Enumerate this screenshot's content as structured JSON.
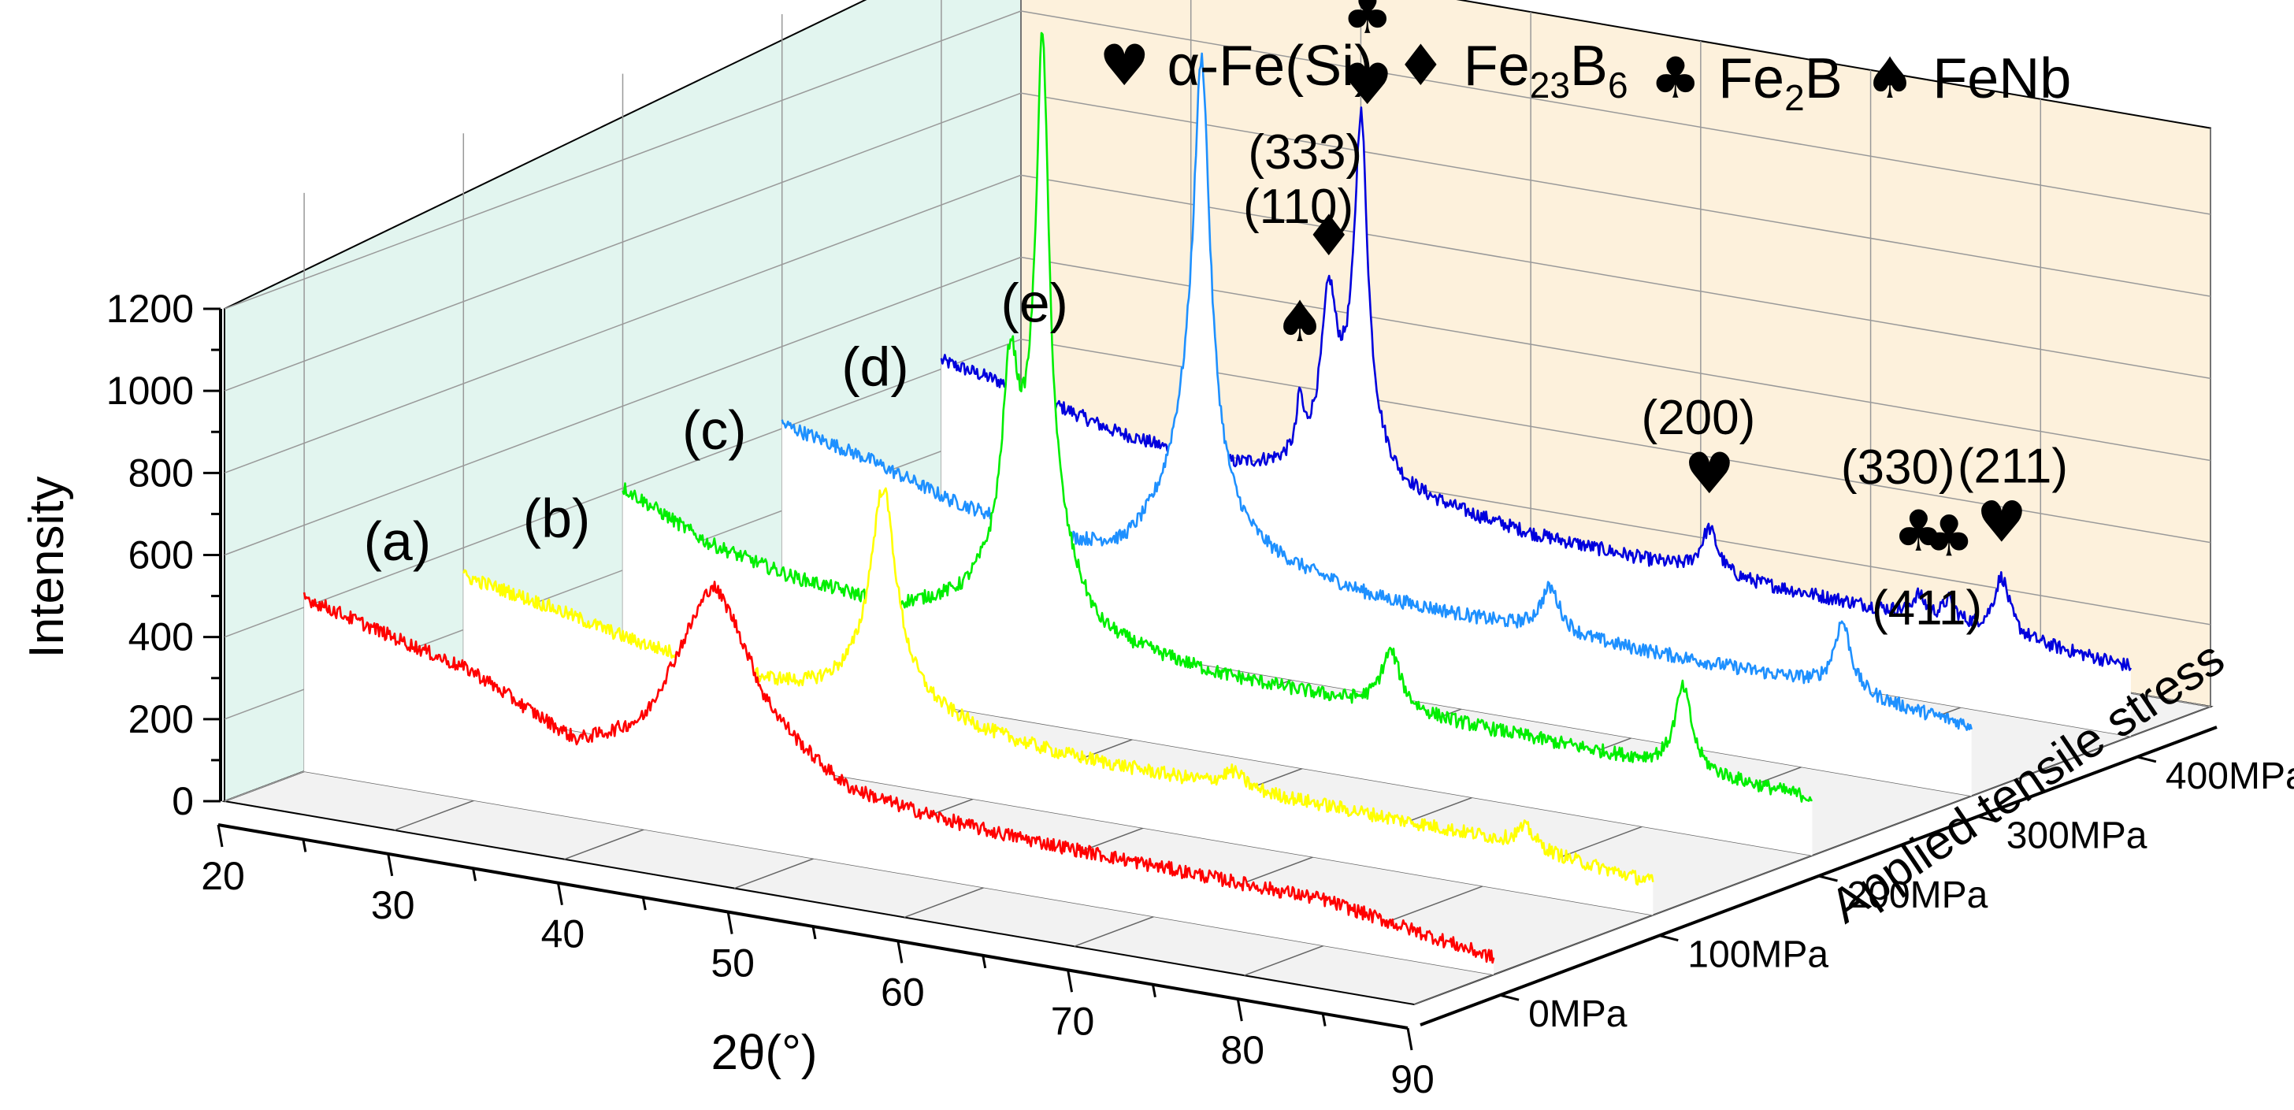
{
  "chart_data": {
    "type": "line",
    "projection": "3d-waterfall",
    "xlabel": "2θ(°)",
    "ylabel": "Intensity",
    "zlabel": "Applied tensile stress",
    "x_ticks": [
      "20",
      "30",
      "40",
      "50",
      "60",
      "70",
      "80",
      "90"
    ],
    "xlim": [
      20,
      90
    ],
    "y_ticks": [
      "0",
      "200",
      "400",
      "600",
      "800",
      "1000",
      "1200"
    ],
    "ylim": [
      0,
      1200
    ],
    "z_ticks": [
      "0MPa",
      "100MPa",
      "200MPa",
      "300MPa",
      "400MPa"
    ],
    "legend": [
      {
        "symbol": "♥",
        "name": "α-Fe(Si)"
      },
      {
        "symbol": "♦",
        "name": "Fe",
        "sub": "23",
        "name2": "B",
        "sub2": "6"
      },
      {
        "symbol": "♣",
        "name": "Fe",
        "sub": "2",
        "name2": "B",
        "sub2": ""
      },
      {
        "symbol": "♠",
        "name": "FeNb",
        "sub": "",
        "name2": "",
        "sub2": ""
      }
    ],
    "series": [
      {
        "name": "(a)",
        "stress": "0MPa",
        "color": "#ff0000",
        "baseline": [
          [
            20,
            420
          ],
          [
            30,
            300
          ],
          [
            36,
            160
          ],
          [
            40,
            190
          ],
          [
            44,
            400
          ],
          [
            47,
            230
          ],
          [
            52,
            150
          ],
          [
            60,
            130
          ],
          [
            70,
            120
          ],
          [
            80,
            110
          ],
          [
            90,
            40
          ]
        ],
        "peaks": [
          [
            44.5,
            230,
            3.5
          ]
        ]
      },
      {
        "name": "(b)",
        "stress": "100MPa",
        "color": "#ffff00",
        "baseline": [
          [
            20,
            330
          ],
          [
            25,
            290
          ],
          [
            30,
            240
          ],
          [
            36,
            200
          ],
          [
            40,
            180
          ],
          [
            45,
            170
          ],
          [
            55,
            140
          ],
          [
            70,
            130
          ],
          [
            80,
            120
          ],
          [
            90,
            80
          ]
        ],
        "peaks": [
          [
            44.7,
            470,
            0.9
          ],
          [
            44.5,
            80,
            3
          ],
          [
            65.3,
            40,
            0.8
          ],
          [
            82.5,
            50,
            0.7
          ]
        ]
      },
      {
        "name": "(c)",
        "stress": "200MPa",
        "color": "#00ee00",
        "baseline": [
          [
            20,
            400
          ],
          [
            25,
            300
          ],
          [
            30,
            250
          ],
          [
            36,
            220
          ],
          [
            40,
            260
          ],
          [
            44,
            380
          ],
          [
            48,
            220
          ],
          [
            55,
            190
          ],
          [
            65,
            180
          ],
          [
            80,
            160
          ],
          [
            90,
            140
          ]
        ],
        "peaks": [
          [
            42.8,
            420,
            0.55
          ],
          [
            44.7,
            1100,
            0.45
          ],
          [
            44.5,
            200,
            1.8
          ],
          [
            65.2,
            140,
            0.7
          ],
          [
            82.4,
            200,
            0.6
          ]
        ]
      },
      {
        "name": "(d)",
        "stress": "300MPa",
        "color": "#1e90ff",
        "baseline": [
          [
            20,
            410
          ],
          [
            25,
            360
          ],
          [
            30,
            290
          ],
          [
            36,
            240
          ],
          [
            40,
            230
          ],
          [
            43,
            300
          ],
          [
            48,
            270
          ],
          [
            55,
            230
          ],
          [
            65,
            220
          ],
          [
            80,
            210
          ],
          [
            90,
            170
          ]
        ],
        "peaks": [
          [
            44.7,
            880,
            0.55
          ],
          [
            44.4,
            320,
            1.6
          ],
          [
            65.2,
            110,
            0.7
          ],
          [
            82.4,
            170,
            0.6
          ]
        ]
      },
      {
        "name": "(e)",
        "stress": "400MPa",
        "color": "#0000dd",
        "baseline": [
          [
            20,
            420
          ],
          [
            25,
            380
          ],
          [
            30,
            320
          ],
          [
            36,
            280
          ],
          [
            40,
            300
          ],
          [
            43,
            360
          ],
          [
            47,
            280
          ],
          [
            55,
            240
          ],
          [
            65,
            220
          ],
          [
            80,
            200
          ],
          [
            90,
            170
          ]
        ],
        "peaks": [
          [
            41.1,
            120,
            0.2
          ],
          [
            42.8,
            320,
            0.5
          ],
          [
            44.7,
            720,
            0.45
          ],
          [
            44.4,
            140,
            1.5
          ],
          [
            65.2,
            110,
            0.6
          ],
          [
            77.5,
            50,
            0.45
          ],
          [
            79.3,
            50,
            0.45
          ],
          [
            82.4,
            140,
            0.55
          ]
        ]
      }
    ],
    "annotations": [
      {
        "series": 4,
        "x": 41.1,
        "symbol": "♠",
        "label": "(110)"
      },
      {
        "series": 4,
        "x": 42.8,
        "symbol": "♦",
        "label": "(333)"
      },
      {
        "series": 4,
        "x": 44.7,
        "symbol": "♥",
        "label": "(110)",
        "extra_symbol": "♣"
      },
      {
        "series": 4,
        "x": 65.2,
        "symbol": "♥",
        "label": "(200)"
      },
      {
        "series": 4,
        "x": 77.5,
        "symbol": "♣",
        "label": "(330)"
      },
      {
        "series": 4,
        "x": 79.3,
        "symbol": "♣",
        "label": "(411)"
      },
      {
        "series": 4,
        "x": 82.4,
        "symbol": "♥",
        "label": "(211)"
      }
    ]
  }
}
